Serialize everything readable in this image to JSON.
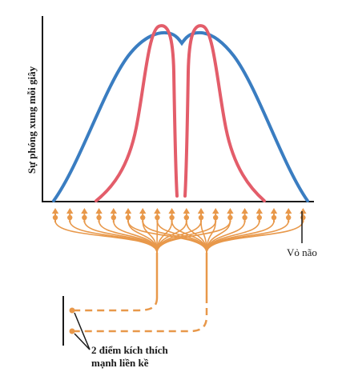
{
  "labels": {
    "y_axis": "Sự phóng xung mỗi giây",
    "cortex": "Vỏ não",
    "stimulus_line1": "2 điểm kích thích",
    "stimulus_line2": "mạnh liền kề"
  },
  "colors": {
    "blue_curve": "#3a7dc1",
    "red_curve": "#e35d6a",
    "neuron": "#e8984a",
    "axis": "#1a1a1a",
    "text": "#1a1a1a"
  },
  "icons": {
    "neuron_marker": "arrow-up-dot-icon",
    "stimulus_point": "dot-icon"
  }
}
